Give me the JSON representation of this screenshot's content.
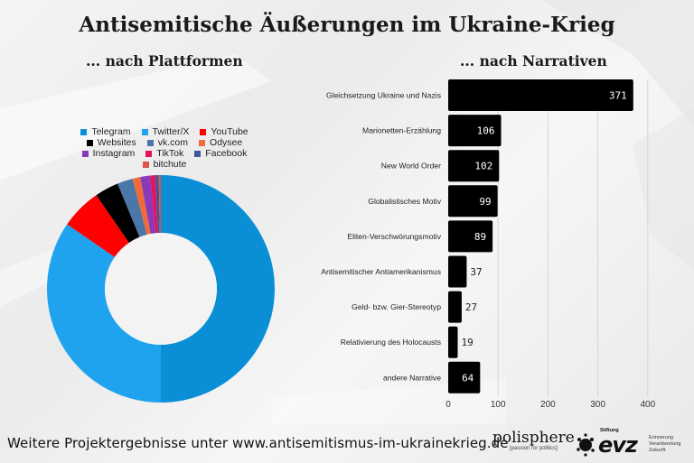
{
  "title": "Antisemitische Äußerungen im Ukraine-Krieg",
  "subtitles": {
    "left": "... nach Plattformen",
    "right": "... nach Narrativen"
  },
  "footer": {
    "text": "Weitere Projektergebnisse unter www.antisemitismus-im-ukrainekrieg.de",
    "logos": {
      "polisphere": {
        "name": "polisphere",
        "tagline": "[passion for politics]"
      },
      "evz": {
        "stiftung": "Stiftung",
        "word": "evz",
        "lines": [
          "Erinnerung",
          "Verantwortung",
          "Zukunft"
        ]
      }
    }
  },
  "chart_data": [
    {
      "type": "pie",
      "subtype": "donut",
      "title": "... nach Plattformen",
      "legend_position": "top",
      "slices": [
        {
          "label": "Telegram",
          "value": 50.0,
          "color": "#0a8fd6"
        },
        {
          "label": "Twitter/X",
          "value": 34.6,
          "color": "#1fa3ee"
        },
        {
          "label": "YouTube",
          "value": 5.8,
          "color": "#ff0000"
        },
        {
          "label": "Websites",
          "value": 3.4,
          "color": "#000000"
        },
        {
          "label": "vk.com",
          "value": 2.2,
          "color": "#4a76a8"
        },
        {
          "label": "Odysee",
          "value": 1.1,
          "color": "#ef6b3a"
        },
        {
          "label": "Instagram",
          "value": 1.4,
          "color": "#8a3ab9"
        },
        {
          "label": "TikTok",
          "value": 0.7,
          "color": "#e4125f"
        },
        {
          "label": "Facebook",
          "value": 0.5,
          "color": "#3b5998"
        },
        {
          "label": "bitchute",
          "value": 0.3,
          "color": "#e0524a"
        }
      ],
      "legend_rows": [
        [
          "Telegram",
          "Twitter/X",
          "YouTube"
        ],
        [
          "Websites",
          "vk.com",
          "Odysee"
        ],
        [
          "Instagram",
          "TikTok",
          "Facebook"
        ],
        [
          "bitchute"
        ]
      ]
    },
    {
      "type": "bar",
      "orientation": "horizontal",
      "title": "... nach Narrativen",
      "categories": [
        "Gleichsetzung Ukraine und Nazis",
        "Marionetten-Erzählung",
        "New World Order",
        "Globalistisches Motiv",
        "Eliten-Verschwörungsmotiv",
        "Antisemitischer Antiamerikanismus",
        "Geld- bzw. Gier-Stereotyp",
        "Relativierung des Holocausts",
        "andere Narrative"
      ],
      "values": [
        371,
        106,
        102,
        99,
        89,
        37,
        27,
        19,
        64
      ],
      "bar_color": "#000000",
      "xlim": [
        0,
        420
      ],
      "xticks": [
        0,
        100,
        200,
        300,
        400
      ],
      "grid": true,
      "xlabel": "",
      "ylabel": ""
    }
  ]
}
